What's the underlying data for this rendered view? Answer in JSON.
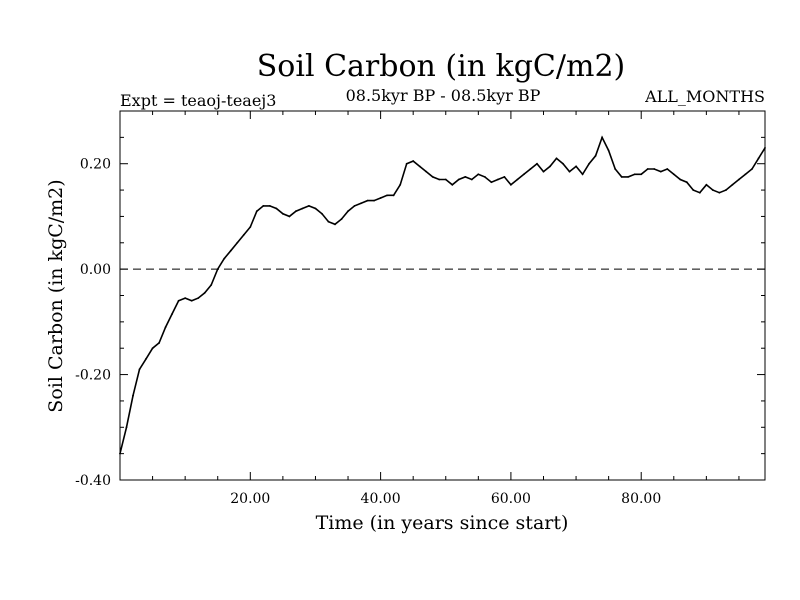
{
  "chart_data": {
    "type": "line",
    "title": "Soil Carbon (in kgC/m2)",
    "expt_label": "Expt = teaoj-teaej3",
    "period_label": "08.5kyr BP - 08.5kyr BP",
    "months_label": "ALL_MONTHS",
    "xlabel": "Time (in years since start)",
    "ylabel": "Soil Carbon (in kgC/m2)",
    "xlim": [
      0,
      99
    ],
    "ylim": [
      -0.4,
      0.3
    ],
    "xticks": [
      20,
      40,
      60,
      80
    ],
    "xtick_labels": [
      "20.00",
      "40.00",
      "60.00",
      "80.00"
    ],
    "yticks": [
      -0.4,
      -0.2,
      0.0,
      0.2
    ],
    "ytick_labels": [
      "-0.40",
      "-0.20",
      "0.00",
      "0.20"
    ],
    "zero_line": {
      "y": 0.0,
      "style": "dashed"
    },
    "series": [
      {
        "name": "Soil Carbon",
        "x": [
          0,
          1,
          2,
          3,
          4,
          5,
          6,
          7,
          8,
          9,
          10,
          11,
          12,
          13,
          14,
          15,
          16,
          17,
          18,
          19,
          20,
          21,
          22,
          23,
          24,
          25,
          26,
          27,
          28,
          29,
          30,
          31,
          32,
          33,
          34,
          35,
          36,
          37,
          38,
          39,
          40,
          41,
          42,
          43,
          44,
          45,
          46,
          47,
          48,
          49,
          50,
          51,
          52,
          53,
          54,
          55,
          56,
          57,
          58,
          59,
          60,
          61,
          62,
          63,
          64,
          65,
          66,
          67,
          68,
          69,
          70,
          71,
          72,
          73,
          74,
          75,
          76,
          77,
          78,
          79,
          80,
          81,
          82,
          83,
          84,
          85,
          86,
          87,
          88,
          89,
          90,
          91,
          92,
          93,
          94,
          95,
          96,
          97,
          98,
          99
        ],
        "values": [
          -0.35,
          -0.3,
          -0.24,
          -0.19,
          -0.17,
          -0.15,
          -0.14,
          -0.11,
          -0.085,
          -0.06,
          -0.055,
          -0.06,
          -0.055,
          -0.045,
          -0.03,
          0.0,
          0.02,
          0.035,
          0.05,
          0.065,
          0.08,
          0.11,
          0.12,
          0.12,
          0.115,
          0.105,
          0.1,
          0.11,
          0.115,
          0.12,
          0.115,
          0.105,
          0.09,
          0.085,
          0.095,
          0.11,
          0.12,
          0.125,
          0.13,
          0.13,
          0.135,
          0.14,
          0.14,
          0.16,
          0.2,
          0.205,
          0.195,
          0.185,
          0.175,
          0.17,
          0.17,
          0.16,
          0.17,
          0.175,
          0.17,
          0.18,
          0.175,
          0.165,
          0.17,
          0.175,
          0.16,
          0.17,
          0.18,
          0.19,
          0.2,
          0.185,
          0.195,
          0.21,
          0.2,
          0.185,
          0.195,
          0.18,
          0.2,
          0.215,
          0.25,
          0.225,
          0.19,
          0.175,
          0.175,
          0.18,
          0.18,
          0.19,
          0.19,
          0.185,
          0.19,
          0.18,
          0.17,
          0.165,
          0.15,
          0.145,
          0.16,
          0.15,
          0.145,
          0.15,
          0.16,
          0.17,
          0.18,
          0.19,
          0.21,
          0.23
        ]
      }
    ]
  }
}
